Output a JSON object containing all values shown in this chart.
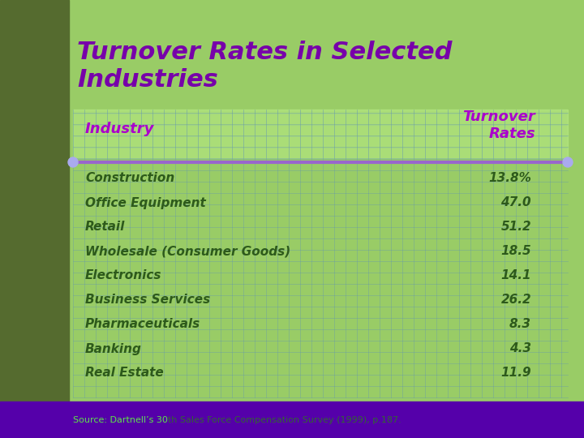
{
  "title": "Turnover Rates in Selected\nIndustries",
  "title_color": "#7700aa",
  "bg_color": "#99cc66",
  "left_panel_color": "#556b2f",
  "table_bg_color": "#aadd77",
  "grid_color": "#6699aa",
  "header_col1": "Industry",
  "header_col2": "Turnover\nRates",
  "header_color": "#aa00cc",
  "row_label_color": "#2d5a1b",
  "row_value_color": "#2d5a1b",
  "separator_color": "#9966cc",
  "footer_color": "#336633",
  "footer_text": "Source: Dartnell’s 30th Sales Force Compensation Survey (1999), p.187.",
  "footer_bar_color": "#5500aa",
  "industries": [
    "Construction",
    "Office Equipment",
    "Retail",
    "Wholesale (Consumer Goods)",
    "Electronics",
    "Business Services",
    "Pharmaceuticals",
    "Banking",
    "Real Estate"
  ],
  "rates": [
    "13.8%",
    "47.0",
    "51.2",
    "18.5",
    "14.1",
    "26.2",
    "8.3",
    "4.3",
    "11.9"
  ]
}
